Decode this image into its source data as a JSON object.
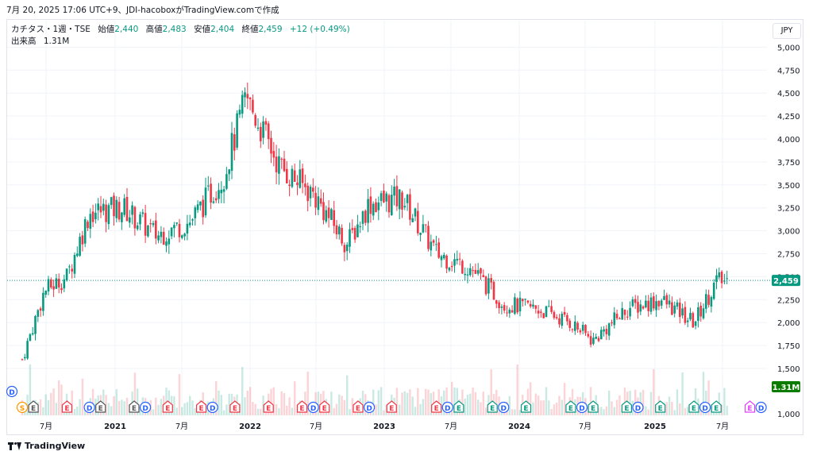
{
  "header": {
    "text": "7月 20, 2025 17:06 UTC+9、JDI-hacoboxがTradingView.comで作成"
  },
  "legend": {
    "symbol": "カチタス・1週・TSE",
    "open_label": "始値",
    "open": "2,440",
    "high_label": "高値",
    "high": "2,483",
    "low_label": "安値",
    "low": "2,404",
    "close_label": "終値",
    "close": "2,459",
    "change": "+12 (+0.49%)",
    "volume_label": "出来高",
    "volume": "1.31M"
  },
  "currency": "JPY",
  "footer": {
    "brand": "TradingView"
  },
  "colors": {
    "up": "#089981",
    "down": "#f23645",
    "grid": "#f0f3fa",
    "text": "#131722"
  },
  "chart_data": {
    "type": "candlestick",
    "y_axis": {
      "ticks": [
        "5,000",
        "4,750",
        "4,500",
        "4,250",
        "4,000",
        "3,750",
        "3,500",
        "3,250",
        "3,000",
        "2,750",
        "2,500",
        "2,250",
        "2,000",
        "1,750",
        "1,500",
        "1,000"
      ],
      "range": [
        1000,
        5000
      ],
      "position": "right"
    },
    "x_axis": {
      "ticks": [
        "7月",
        "2021",
        "7月",
        "2022",
        "7月",
        "2023",
        "7月",
        "2024",
        "7月",
        "2025",
        "7月"
      ],
      "range": [
        "2020-04",
        "2025-10"
      ]
    },
    "last_price": 2459,
    "last_price_label": "2,459",
    "volume_label": "1.31M",
    "series": [
      {
        "name": "price",
        "x": [
          "2020-04",
          "2020-06",
          "2020-08",
          "2020-10",
          "2021-01",
          "2021-04",
          "2021-07",
          "2021-10",
          "2021-12",
          "2022-03",
          "2022-06",
          "2022-09",
          "2022-11",
          "2023-02",
          "2023-05",
          "2023-08",
          "2023-11",
          "2024-02",
          "2024-05",
          "2024-07",
          "2024-10",
          "2025-01",
          "2025-04",
          "2025-06",
          "2025-07"
        ],
        "close": [
          1600,
          2350,
          2500,
          3200,
          3250,
          2950,
          3100,
          3600,
          4450,
          3700,
          3400,
          2850,
          3300,
          3350,
          2750,
          2600,
          2200,
          2150,
          2000,
          1800,
          2150,
          2250,
          2000,
          2450,
          2459
        ]
      }
    ],
    "events": [
      {
        "type": "D",
        "period": "2020-04"
      },
      {
        "type": "S",
        "period": "2020-04"
      },
      {
        "type": "E",
        "period": "2020-05"
      },
      {
        "type": "E",
        "period": "2020-08"
      },
      {
        "type": "D",
        "period": "2020-10"
      },
      {
        "type": "E",
        "period": "2020-11"
      },
      {
        "type": "E",
        "period": "2021-02"
      },
      {
        "type": "D",
        "period": "2021-03"
      },
      {
        "type": "E",
        "period": "2021-05"
      },
      {
        "type": "E",
        "period": "2021-08"
      },
      {
        "type": "D",
        "period": "2021-09"
      },
      {
        "type": "E",
        "period": "2021-11"
      },
      {
        "type": "E",
        "period": "2022-02"
      },
      {
        "type": "E",
        "period": "2022-05"
      },
      {
        "type": "D",
        "period": "2022-06"
      },
      {
        "type": "E",
        "period": "2022-07"
      },
      {
        "type": "E",
        "period": "2022-10"
      },
      {
        "type": "D",
        "period": "2022-11"
      },
      {
        "type": "E",
        "period": "2023-01"
      },
      {
        "type": "E",
        "period": "2023-05"
      },
      {
        "type": "D",
        "period": "2023-06"
      },
      {
        "type": "E",
        "period": "2023-07"
      },
      {
        "type": "E",
        "period": "2023-10"
      },
      {
        "type": "D",
        "period": "2023-11"
      },
      {
        "type": "E",
        "period": "2024-01"
      },
      {
        "type": "E",
        "period": "2024-05"
      },
      {
        "type": "D",
        "period": "2024-06"
      },
      {
        "type": "E",
        "period": "2024-07"
      },
      {
        "type": "E",
        "period": "2024-10"
      },
      {
        "type": "D",
        "period": "2024-11"
      },
      {
        "type": "E",
        "period": "2025-01"
      },
      {
        "type": "E",
        "period": "2025-04"
      },
      {
        "type": "D",
        "period": "2025-05"
      },
      {
        "type": "E",
        "period": "2025-06"
      },
      {
        "type": "E",
        "period": "2025-09"
      },
      {
        "type": "D",
        "period": "2025-10"
      }
    ]
  }
}
